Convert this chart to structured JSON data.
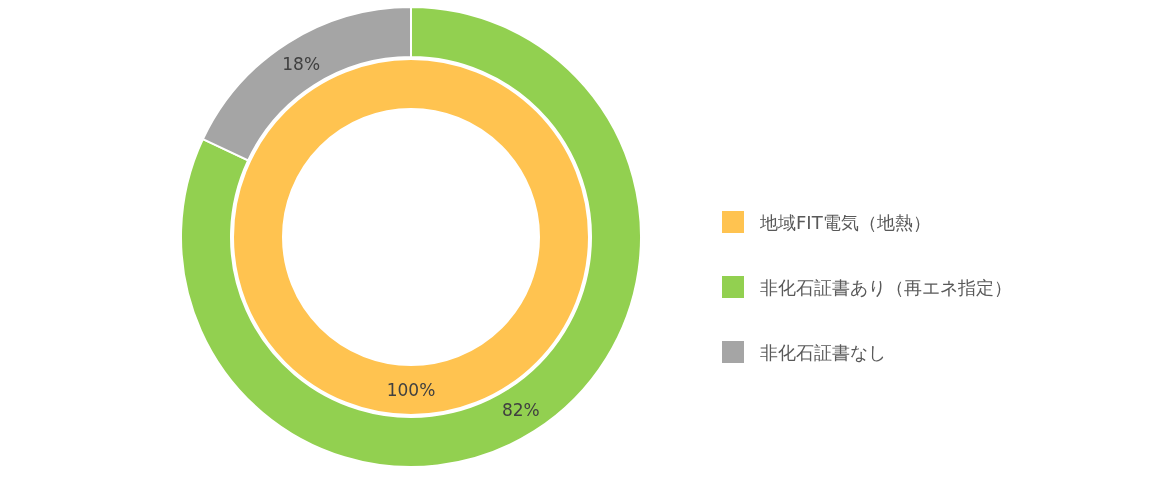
{
  "chart_data": {
    "type": "donut",
    "categories": [
      "地域FIT電気（地熱）",
      "非化石証書あり（再エネ指定）",
      "非化石証書なし"
    ],
    "colors": [
      "#ffc350",
      "#92d050",
      "#a5a5a5"
    ],
    "series": [
      {
        "values": [
          100,
          null,
          null
        ],
        "value_labels": [
          "100%",
          null,
          null
        ]
      },
      {
        "values": [
          null,
          82,
          18
        ],
        "value_labels": [
          null,
          "82%",
          "18%"
        ]
      }
    ],
    "legend": "right"
  }
}
